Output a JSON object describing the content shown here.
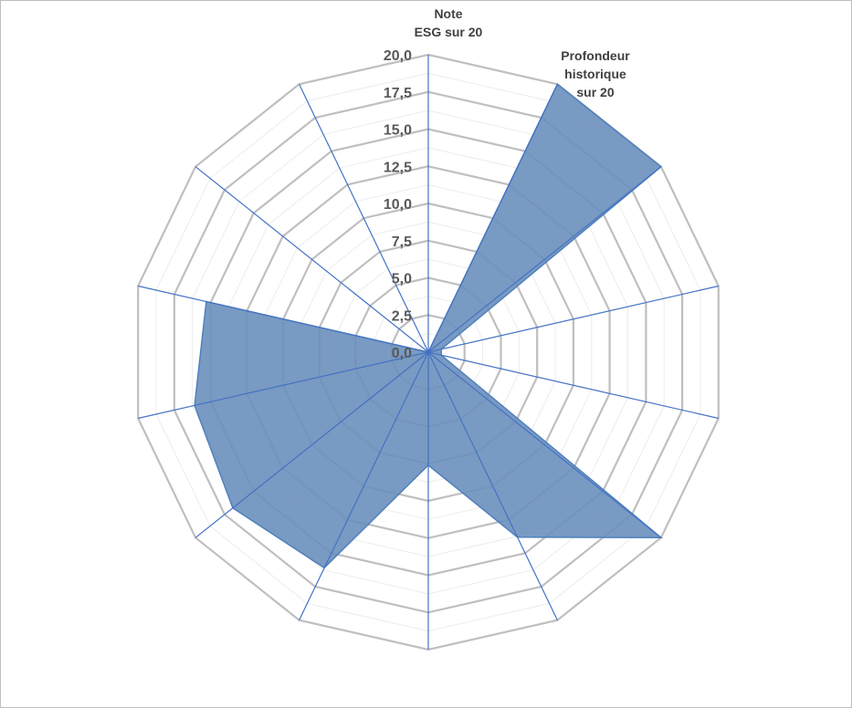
{
  "chart_data": {
    "type": "radar",
    "title": "",
    "axes": [
      "Note\nESG sur 20",
      "Profondeur\nhistorique\nsur 20",
      "",
      "",
      "",
      "",
      "",
      "",
      "",
      "",
      "",
      "",
      "",
      ""
    ],
    "series": [
      {
        "values": [
          0,
          20,
          20,
          0.9,
          0.9,
          20,
          13.8,
          7.6,
          16.1,
          16.8,
          16.1,
          15.3,
          0,
          0
        ],
        "color": "#4f81bd",
        "fill": "#6a8fbb"
      }
    ],
    "rmin": 0,
    "rmax": 20,
    "major_step": 2.5,
    "minor_step": 1.25,
    "tick_labels": [
      "0,0",
      "2,5",
      "5,0",
      "7,5",
      "10,0",
      "12,5",
      "15,0",
      "17,5",
      "20,0"
    ],
    "grid": true,
    "legend": "none",
    "colors": {
      "grid_major": "#bfbfbf",
      "grid_minor": "#ececec",
      "spoke": "#4472c4"
    }
  }
}
